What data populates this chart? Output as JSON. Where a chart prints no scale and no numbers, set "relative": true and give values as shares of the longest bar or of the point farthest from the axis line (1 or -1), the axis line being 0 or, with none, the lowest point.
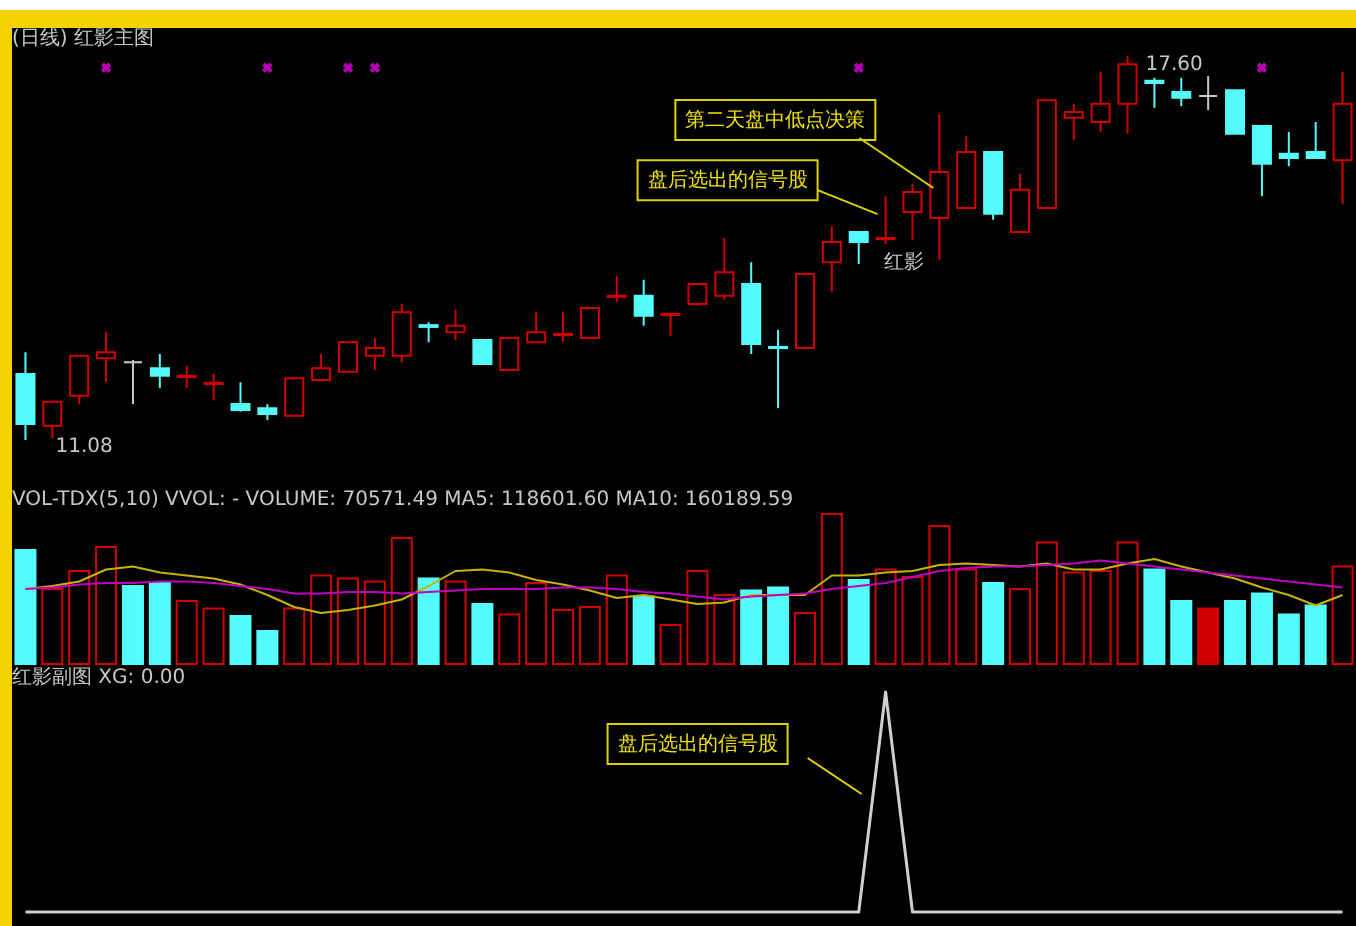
{
  "chart_data": [
    {
      "type": "candlestick",
      "title": "(日线) 红影主图",
      "categories": [
        null,
        null,
        null,
        null,
        null,
        null,
        null,
        null,
        null,
        null,
        null,
        null,
        null,
        null,
        null,
        null,
        null,
        null,
        null,
        null,
        null,
        null,
        null,
        null,
        null,
        null,
        null,
        null,
        null,
        null,
        null,
        null,
        null,
        null,
        null,
        null,
        null,
        null,
        null,
        null,
        null,
        null,
        null,
        null,
        null,
        null,
        null,
        null,
        null,
        null
      ],
      "ohlc": [
        [
          12.2,
          12.57,
          11.08,
          11.35
        ],
        [
          11.32,
          11.73,
          11.11,
          11.73
        ],
        [
          11.83,
          12.51,
          11.69,
          12.51
        ],
        [
          12.47,
          12.91,
          12.06,
          12.57
        ],
        [
          12.4,
          12.44,
          11.69,
          12.4
        ],
        [
          12.3,
          12.54,
          11.96,
          12.17
        ],
        [
          12.15,
          12.34,
          11.96,
          12.17
        ],
        [
          12.03,
          12.2,
          11.76,
          12.05
        ],
        [
          11.69,
          12.06,
          11.56,
          11.59
        ],
        [
          11.62,
          11.69,
          11.42,
          11.52
        ],
        [
          11.49,
          12.13,
          11.49,
          12.13
        ],
        [
          12.1,
          12.54,
          12.1,
          12.3
        ],
        [
          12.24,
          12.74,
          12.24,
          12.74
        ],
        [
          12.51,
          12.81,
          12.27,
          12.64
        ],
        [
          12.51,
          13.39,
          12.4,
          13.25
        ],
        [
          13.03,
          13.08,
          12.74,
          13.0
        ],
        [
          12.91,
          13.29,
          12.78,
          13.02
        ],
        [
          12.78,
          12.78,
          12.37,
          12.37
        ],
        [
          12.27,
          12.81,
          12.27,
          12.81
        ],
        [
          12.74,
          13.25,
          12.74,
          12.91
        ],
        [
          12.86,
          13.25,
          12.74,
          12.88
        ],
        [
          12.81,
          13.32,
          12.81,
          13.32
        ],
        [
          13.51,
          13.87,
          13.42,
          13.53
        ],
        [
          13.53,
          13.8,
          13.02,
          13.19
        ],
        [
          13.2,
          13.22,
          12.85,
          13.22
        ],
        [
          13.39,
          13.73,
          13.36,
          13.73
        ],
        [
          13.53,
          14.51,
          13.46,
          13.93
        ],
        [
          13.73,
          14.1,
          12.54,
          12.71
        ],
        [
          12.66,
          12.95,
          11.62,
          12.64
        ],
        [
          12.64,
          13.9,
          12.64,
          13.9
        ],
        [
          14.1,
          14.71,
          13.59,
          14.44
        ],
        [
          14.61,
          14.61,
          14.07,
          14.44
        ],
        [
          14.49,
          15.22,
          14.41,
          14.51
        ],
        [
          14.95,
          15.43,
          14.48,
          15.29
        ],
        [
          14.85,
          16.62,
          14.14,
          15.63
        ],
        [
          15.02,
          16.24,
          15.02,
          15.97
        ],
        [
          15.97,
          15.97,
          14.82,
          14.92
        ],
        [
          14.61,
          15.6,
          14.61,
          15.33
        ],
        [
          15.02,
          16.85,
          15.02,
          16.85
        ],
        [
          16.55,
          16.79,
          16.17,
          16.65
        ],
        [
          16.48,
          17.33,
          16.31,
          16.79
        ],
        [
          16.79,
          17.6,
          16.28,
          17.46
        ],
        [
          17.18,
          17.23,
          16.72,
          17.14
        ],
        [
          16.99,
          17.23,
          16.75,
          16.89
        ],
        [
          16.92,
          17.26,
          16.68,
          16.92
        ],
        [
          17.02,
          17.02,
          16.28,
          16.28
        ],
        [
          16.41,
          16.41,
          15.22,
          15.77
        ],
        [
          15.94,
          16.31,
          15.73,
          15.87
        ],
        [
          15.97,
          16.48,
          15.87,
          15.87
        ],
        [
          15.83,
          17.33,
          15.09,
          16.79
        ]
      ],
      "colors": [
        "#54fcfc",
        "#d00000",
        "#d00000",
        "#d00000",
        "#c8c8c8",
        "#54fcfc",
        "#d00000",
        "#d00000",
        "#54fcfc",
        "#54fcfc",
        "#d00000",
        "#d00000",
        "#d00000",
        "#d00000",
        "#d00000",
        "#54fcfc",
        "#d00000",
        "#54fcfc",
        "#d00000",
        "#d00000",
        "#d00000",
        "#d00000",
        "#d00000",
        "#54fcfc",
        "#d00000",
        "#d00000",
        "#d00000",
        "#54fcfc",
        "#54fcfc",
        "#d00000",
        "#d00000",
        "#54fcfc",
        "#d00000",
        "#d00000",
        "#d00000",
        "#d00000",
        "#54fcfc",
        "#d00000",
        "#d00000",
        "#d00000",
        "#d00000",
        "#d00000",
        "#54fcfc",
        "#54fcfc",
        "#c8c8c8",
        "#54fcfc",
        "#54fcfc",
        "#54fcfc",
        "#54fcfc",
        "#d00000"
      ],
      "series": [
        {
          "type": "scatter",
          "marker": "cross",
          "color": "#ff00ff",
          "values": [
            null,
            null,
            null,
            17.4,
            null,
            null,
            null,
            null,
            null,
            17.4,
            null,
            null,
            17.4,
            17.4,
            null,
            null,
            null,
            null,
            null,
            null,
            null,
            null,
            null,
            null,
            null,
            null,
            null,
            null,
            null,
            null,
            null,
            17.4,
            null,
            null,
            null,
            null,
            null,
            null,
            null,
            null,
            null,
            null,
            null,
            null,
            null,
            null,
            17.4,
            null,
            null,
            null
          ]
        }
      ],
      "annotations": [
        "第二天盘中低点决策",
        "盘后选出的信号股",
        "红影",
        "17.60",
        "11.08"
      ]
    },
    {
      "type": "bar",
      "relative": true,
      "title": "VOL-TDX(5,10) VVOL: -  VOLUME: 70571.49  MA5: 118601.60  MA10: 160189.59",
      "categories": [
        null,
        null,
        null,
        null,
        null,
        null,
        null,
        null,
        null,
        null,
        null,
        null,
        null,
        null,
        null,
        null,
        null,
        null,
        null,
        null,
        null,
        null,
        null,
        null,
        null,
        null,
        null,
        null,
        null,
        null,
        null,
        null,
        null,
        null,
        null,
        null,
        null,
        null,
        null,
        null,
        null,
        null,
        null,
        null,
        null,
        null,
        null,
        null,
        null,
        null
      ],
      "series": [
        {
          "type": "bar",
          "colors": [
            "#54fcfc",
            "#d00000",
            "#d00000",
            "#d00000",
            "#54fcfc",
            "#54fcfc",
            "#d00000",
            "#d00000",
            "#54fcfc",
            "#54fcfc",
            "#d00000",
            "#d00000",
            "#d00000",
            "#d00000",
            "#d00000",
            "#54fcfc",
            "#d00000",
            "#54fcfc",
            "#d00000",
            "#d00000",
            "#d00000",
            "#d00000",
            "#d00000",
            "#54fcfc",
            "#d00000",
            "#d00000",
            "#d00000",
            "#54fcfc",
            "#54fcfc",
            "#d00000",
            "#d00000",
            "#54fcfc",
            "#d00000",
            "#d00000",
            "#d00000",
            "#d00000",
            "#54fcfc",
            "#d00000",
            "#d00000",
            "#d00000",
            "#d00000",
            "#d00000",
            "#54fcfc",
            "#54fcfc",
            "#d00000",
            "#54fcfc",
            "#54fcfc",
            "#54fcfc",
            "#54fcfc",
            "#d00000"
          ],
          "values": [
            0.76,
            0.5,
            0.62,
            0.78,
            0.52,
            0.54,
            0.42,
            0.37,
            0.32,
            0.22,
            0.37,
            0.59,
            0.57,
            0.55,
            0.84,
            0.57,
            0.55,
            0.4,
            0.33,
            0.54,
            0.36,
            0.38,
            0.59,
            0.45,
            0.26,
            0.62,
            0.46,
            0.49,
            0.51,
            0.34,
            1.0,
            0.56,
            0.63,
            0.58,
            0.92,
            0.63,
            0.54,
            0.5,
            0.81,
            0.61,
            0.62,
            0.81,
            0.63,
            0.42,
            0.37,
            0.42,
            0.47,
            0.33,
            0.39,
            0.65
          ]
        },
        {
          "type": "line",
          "color": "#c8b400",
          "values": [
            0.5,
            0.52,
            0.55,
            0.63,
            0.65,
            0.61,
            0.59,
            0.57,
            0.53,
            0.46,
            0.38,
            0.34,
            0.36,
            0.39,
            0.43,
            0.52,
            0.62,
            0.63,
            0.61,
            0.56,
            0.53,
            0.49,
            0.44,
            0.46,
            0.43,
            0.4,
            0.41,
            0.46,
            0.46,
            0.46,
            0.59,
            0.59,
            0.61,
            0.62,
            0.66,
            0.67,
            0.66,
            0.65,
            0.67,
            0.63,
            0.63,
            0.67,
            0.7,
            0.65,
            0.61,
            0.57,
            0.51,
            0.46,
            0.39,
            0.46
          ]
        },
        {
          "type": "line",
          "color": "#c000c0",
          "values": [
            0.5,
            0.51,
            0.53,
            0.54,
            0.54,
            0.55,
            0.55,
            0.54,
            0.52,
            0.5,
            0.47,
            0.47,
            0.48,
            0.48,
            0.47,
            0.48,
            0.49,
            0.5,
            0.5,
            0.5,
            0.51,
            0.51,
            0.5,
            0.48,
            0.47,
            0.45,
            0.43,
            0.45,
            0.46,
            0.47,
            0.5,
            0.52,
            0.54,
            0.58,
            0.62,
            0.64,
            0.65,
            0.65,
            0.66,
            0.67,
            0.69,
            0.67,
            0.65,
            0.63,
            0.61,
            0.59,
            0.57,
            0.55,
            0.53,
            0.51
          ]
        }
      ]
    },
    {
      "type": "line",
      "relative": true,
      "title": "红影副图 XG: 0.00",
      "categories": [
        null,
        null,
        null,
        null,
        null,
        null,
        null,
        null,
        null,
        null,
        null,
        null,
        null,
        null,
        null,
        null,
        null,
        null,
        null,
        null,
        null,
        null,
        null,
        null,
        null,
        null,
        null,
        null,
        null,
        null,
        null,
        null,
        null,
        null,
        null,
        null,
        null,
        null,
        null,
        null,
        null,
        null,
        null,
        null,
        null,
        null,
        null,
        null,
        null,
        null
      ],
      "color": "#d0d0d0",
      "values": [
        0,
        0,
        0,
        0,
        0,
        0,
        0,
        0,
        0,
        0,
        0,
        0,
        0,
        0,
        0,
        0,
        0,
        0,
        0,
        0,
        0,
        0,
        0,
        0,
        0,
        0,
        0,
        0,
        0,
        0,
        0,
        0,
        1,
        0,
        0,
        0,
        0,
        0,
        0,
        0,
        0,
        0,
        0,
        0,
        0,
        0,
        0,
        0,
        0,
        0
      ],
      "annotations": [
        "盘后选出的信号股"
      ]
    }
  ]
}
